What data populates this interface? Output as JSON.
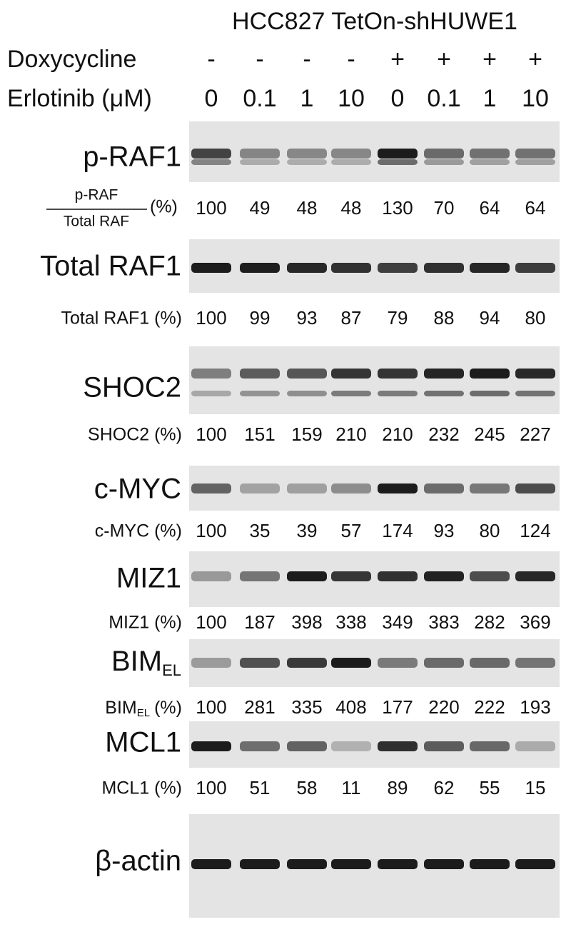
{
  "header": {
    "title": "HCC827 TetOn-shHUWE1"
  },
  "conditions": [
    {
      "label": "Doxycycline",
      "values": [
        "-",
        "-",
        "-",
        "-",
        "+",
        "+",
        "+",
        "+"
      ]
    },
    {
      "label": "Erlotinib (μM)",
      "values": [
        0,
        0.1,
        1,
        10,
        0,
        0.1,
        1,
        10
      ]
    }
  ],
  "blots": [
    {
      "label": "p-RAF1",
      "quant_label": {
        "numerator": "p-RAF",
        "denominator": "Total RAF",
        "unit": "(%)"
      },
      "values": [
        100,
        49,
        48,
        48,
        130,
        70,
        64,
        64
      ]
    },
    {
      "label": "Total RAF1",
      "quant_label": "Total RAF1 (%)",
      "values": [
        100,
        99,
        93,
        87,
        79,
        88,
        94,
        80
      ]
    },
    {
      "label": "SHOC2",
      "quant_label": "SHOC2 (%)",
      "values": [
        100,
        151,
        159,
        210,
        210,
        232,
        245,
        227
      ]
    },
    {
      "label": "c-MYC",
      "quant_label": "c-MYC (%)",
      "values": [
        100,
        35,
        39,
        57,
        174,
        93,
        80,
        124
      ]
    },
    {
      "label": "MIZ1",
      "quant_label": "MIZ1 (%)",
      "values": [
        100,
        187,
        398,
        338,
        349,
        383,
        282,
        369
      ]
    },
    {
      "label": {
        "main": "BIM",
        "sub": "EL"
      },
      "quant_label": {
        "main": "BIM",
        "sub": "EL",
        "unit": "(%)"
      },
      "values": [
        100,
        281,
        335,
        408,
        177,
        220,
        222,
        193
      ]
    },
    {
      "label": "MCL1",
      "quant_label": "MCL1 (%)",
      "values": [
        100,
        51,
        58,
        11,
        89,
        62,
        55,
        15
      ]
    },
    {
      "label": "β-actin"
    }
  ]
}
